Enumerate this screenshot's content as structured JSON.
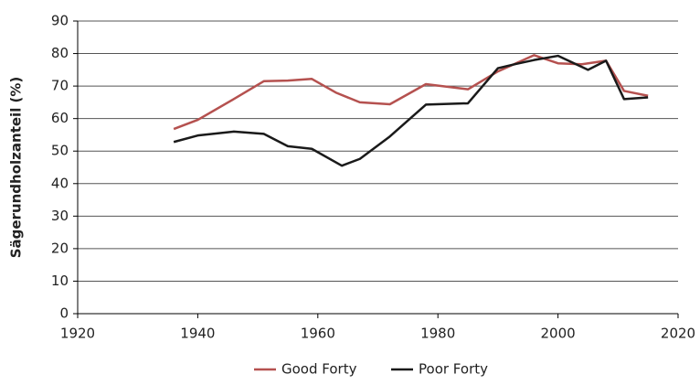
{
  "chart_data": {
    "type": "line",
    "y_label": "Sägerundholzanteil (%)",
    "xlim": [
      1920,
      2020
    ],
    "xticks": [
      1920,
      1940,
      1960,
      1980,
      2000,
      2020
    ],
    "ylim": [
      0,
      90
    ],
    "yticks": [
      0,
      10,
      20,
      30,
      40,
      50,
      60,
      70,
      80,
      90
    ],
    "grid": true,
    "legend": "bottom",
    "series": [
      {
        "name": "Good Forty",
        "color": "#b5514f",
        "x": [
          1936,
          1940,
          1946,
          1951,
          1955,
          1959,
          1963,
          1967,
          1972,
          1978,
          1985,
          1990,
          1996,
          2000,
          2004,
          2008,
          2011,
          2015
        ],
        "values": [
          56.8,
          59.6,
          66,
          71.5,
          71.7,
          72.2,
          68,
          65,
          64.4,
          70.6,
          69,
          74.5,
          79.5,
          77,
          76.7,
          77.8,
          68.5,
          67
        ]
      },
      {
        "name": "Poor Forty",
        "color": "#1a1a1a",
        "x": [
          1936,
          1940,
          1946,
          1951,
          1955,
          1959,
          1964,
          1967,
          1972,
          1978,
          1985,
          1990,
          1993,
          1996,
          2000,
          2005,
          2008,
          2011,
          2015
        ],
        "values": [
          52.8,
          54.8,
          56,
          55.3,
          51.5,
          50.7,
          45.5,
          47.6,
          54.5,
          64.3,
          64.7,
          75.5,
          76.8,
          78,
          79.3,
          75,
          77.8,
          66,
          66.5
        ]
      }
    ]
  }
}
